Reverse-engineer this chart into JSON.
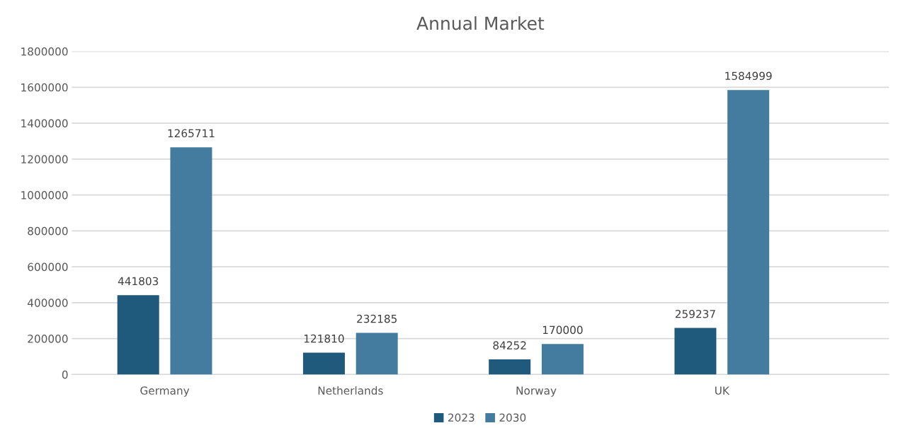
{
  "chart_data": {
    "type": "bar",
    "title": "Annual Market",
    "categories": [
      "Germany",
      "Netherlands",
      "Norway",
      "UK"
    ],
    "series": [
      {
        "name": "2023",
        "color": "#1f5a7c",
        "values": [
          441803,
          121810,
          84252,
          259237
        ]
      },
      {
        "name": "2030",
        "color": "#437c9e",
        "values": [
          1265711,
          232185,
          170000,
          1584999
        ]
      }
    ],
    "ylim": [
      0,
      1800000
    ],
    "yticks": [
      0,
      200000,
      400000,
      600000,
      800000,
      1000000,
      1200000,
      1400000,
      1600000,
      1800000
    ],
    "grid": "y",
    "legend": "bottom",
    "data_labels": true
  }
}
